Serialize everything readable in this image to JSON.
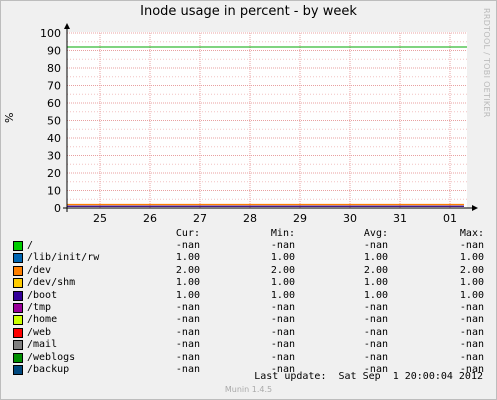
{
  "chart_data": {
    "type": "line",
    "title": "Inode usage in percent - by week",
    "ylabel": "%",
    "xlabel": "",
    "ylim": [
      0,
      100
    ],
    "yticks": [
      "0",
      "10",
      "20",
      "30",
      "40",
      "50",
      "60",
      "70",
      "80",
      "90",
      "100"
    ],
    "x_tick_labels": [
      "25",
      "26",
      "27",
      "28",
      "29",
      "30",
      "31",
      "01"
    ],
    "warning_line": 92,
    "series": [
      {
        "name": "/",
        "color": "#00cc00",
        "values": null
      },
      {
        "name": "/lib/init/rw",
        "color": "#0066b3",
        "values": 1.0
      },
      {
        "name": "/dev",
        "color": "#ff8000",
        "values": 2.0
      },
      {
        "name": "/dev/shm",
        "color": "#ffcc00",
        "values": 1.0
      },
      {
        "name": "/boot",
        "color": "#330099",
        "values": 1.0
      },
      {
        "name": "/tmp",
        "color": "#990099",
        "values": null
      },
      {
        "name": "/home",
        "color": "#ccff00",
        "values": null
      },
      {
        "name": "/web",
        "color": "#ff0000",
        "values": null
      },
      {
        "name": "/mail",
        "color": "#808080",
        "values": null
      },
      {
        "name": "/weblogs",
        "color": "#008f00",
        "values": null
      },
      {
        "name": "/backup",
        "color": "#00487d",
        "values": null
      }
    ]
  },
  "watermark": "RRDTOOL / TOBI OETIKER",
  "legend": {
    "headers": {
      "cur": "Cur:",
      "min": "Min:",
      "avg": "Avg:",
      "max": "Max:"
    },
    "rows": [
      {
        "name": "/",
        "color": "#00cc00",
        "cur": "-nan",
        "min": "-nan",
        "avg": "-nan",
        "max": "-nan"
      },
      {
        "name": "/lib/init/rw",
        "color": "#0066b3",
        "cur": "1.00",
        "min": "1.00",
        "avg": "1.00",
        "max": "1.00"
      },
      {
        "name": "/dev",
        "color": "#ff8000",
        "cur": "2.00",
        "min": "2.00",
        "avg": "2.00",
        "max": "2.00"
      },
      {
        "name": "/dev/shm",
        "color": "#ffcc00",
        "cur": "1.00",
        "min": "1.00",
        "avg": "1.00",
        "max": "1.00"
      },
      {
        "name": "/boot",
        "color": "#330099",
        "cur": "1.00",
        "min": "1.00",
        "avg": "1.00",
        "max": "1.00"
      },
      {
        "name": "/tmp",
        "color": "#990099",
        "cur": "-nan",
        "min": "-nan",
        "avg": "-nan",
        "max": "-nan"
      },
      {
        "name": "/home",
        "color": "#ccff00",
        "cur": "-nan",
        "min": "-nan",
        "avg": "-nan",
        "max": "-nan"
      },
      {
        "name": "/web",
        "color": "#ff0000",
        "cur": "-nan",
        "min": "-nan",
        "avg": "-nan",
        "max": "-nan"
      },
      {
        "name": "/mail",
        "color": "#808080",
        "cur": "-nan",
        "min": "-nan",
        "avg": "-nan",
        "max": "-nan"
      },
      {
        "name": "/weblogs",
        "color": "#008f00",
        "cur": "-nan",
        "min": "-nan",
        "avg": "-nan",
        "max": "-nan"
      },
      {
        "name": "/backup",
        "color": "#00487d",
        "cur": "-nan",
        "min": "-nan",
        "avg": "-nan",
        "max": "-nan"
      }
    ]
  },
  "last_update": "Last update:  Sat Sep  1 20:00:04 2012",
  "footer": "Munin 1.4.5"
}
